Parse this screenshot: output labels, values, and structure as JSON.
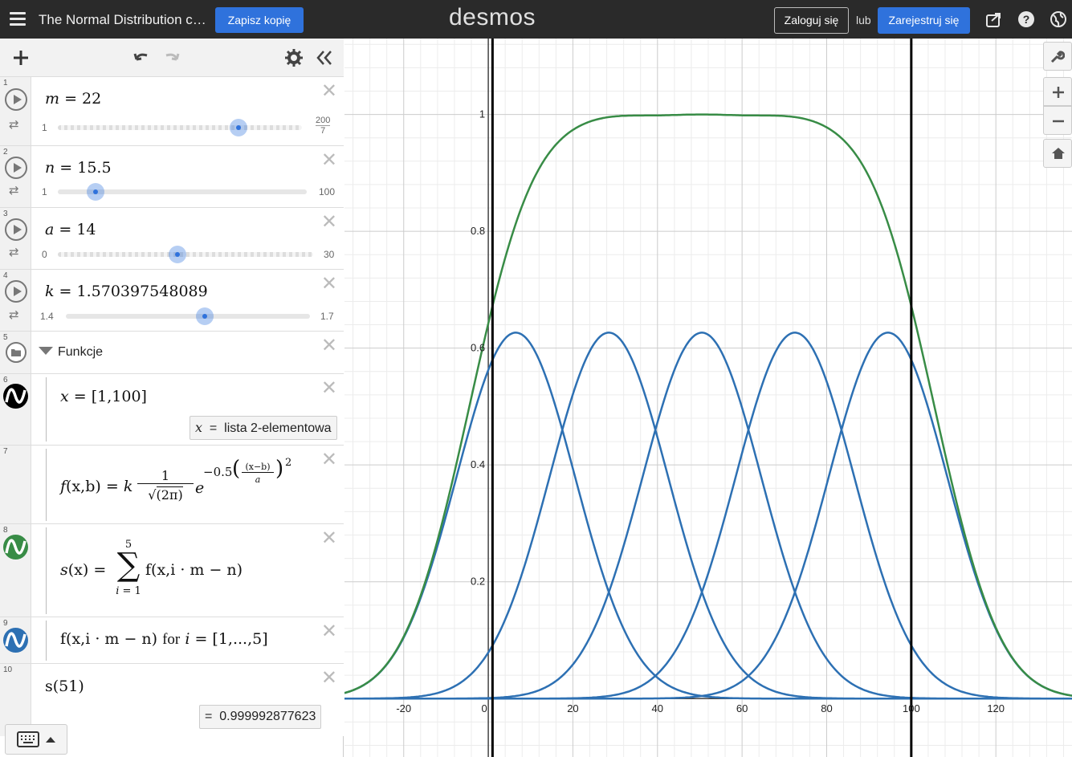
{
  "header": {
    "menu_icon": "hamburger-menu-icon",
    "title": "The Normal Distribution cu...",
    "save_copy": "Zapisz kopię",
    "logo": "desmos",
    "login": "Zaloguj się",
    "or": "lub",
    "register": "Zarejestruj się",
    "icons": [
      "share-icon",
      "help-icon",
      "language-globe-icon"
    ]
  },
  "toolbar": {
    "icons": [
      "add-icon",
      "undo-icon",
      "redo-icon",
      "settings-gear-icon",
      "collapse-panel-icon"
    ]
  },
  "expressions": [
    {
      "index": "1",
      "var": "m",
      "value": "22",
      "min": "1",
      "max_num": "200",
      "max_den": "7",
      "knob_fraction": 0.74
    },
    {
      "index": "2",
      "var": "n",
      "value": "15.5",
      "min": "1",
      "max": "100",
      "knob_fraction": 0.15
    },
    {
      "index": "3",
      "var": "a",
      "value": "14",
      "min": "0",
      "max": "30",
      "knob_fraction": 0.47
    },
    {
      "index": "4",
      "var": "k",
      "value": "1.570397548089",
      "min": "1.4",
      "max": "1.7",
      "knob_fraction": 0.57
    },
    {
      "index": "5",
      "folder": "Funkcje"
    },
    {
      "index": "6",
      "result_var": "x",
      "result_eq": "=",
      "result": "lista 2-elementowa"
    },
    {
      "index": "7"
    },
    {
      "index": "8"
    },
    {
      "index": "9"
    },
    {
      "index": "10",
      "result_eq": "=",
      "result": "0.999992877623"
    }
  ],
  "math": {
    "e6_lhs": "x",
    "e6_eq": "=",
    "e6_rhs": "[1,100]",
    "e7_f": "f",
    "e7_args": "(x,b)",
    "e7_eq": "=",
    "e7_k": "k",
    "e7_num": "1",
    "e7_den": "(2π)",
    "e7_e": "e",
    "e7_exp_a": "−0.5",
    "e7_exp_num": "(x−b)",
    "e7_exp_den": "a",
    "e7_exp_pow": "2",
    "e8_s": "s",
    "e8_args": "(x)",
    "e8_eq": "=",
    "e8_top": "5",
    "e8_bot": "i = 1",
    "e8_body": "f(x,i · m − n)",
    "e9_body": "f(x,i · m − n)",
    "e9_for": "for",
    "e9_i": "i",
    "e9_eq": "=",
    "e9_list": "[1,...,5]",
    "e10_body": "s(51)"
  },
  "side_controls": [
    "wrench-icon",
    "zoom-in-icon",
    "zoom-out-icon",
    "home-icon"
  ],
  "keyboard": {
    "icon": "keyboard-icon",
    "toggle": "caret-up-icon"
  },
  "colors": {
    "blue": "#2d70b3",
    "green": "#388c46",
    "black": "#000000"
  },
  "chart_data": {
    "type": "line",
    "x_ticks": [
      "-20",
      "0",
      "20",
      "40",
      "60",
      "80",
      "100",
      "120"
    ],
    "y_ticks": [
      "0.2",
      "0.4",
      "0.6",
      "0.8",
      "1"
    ],
    "xlim": [
      -34,
      138
    ],
    "ylim": [
      -0.1,
      1.13
    ],
    "grid": true,
    "params": {
      "m": 22,
      "n": 15.5,
      "a": 14,
      "k": 1.570397548089
    },
    "vertical_lines": [
      1,
      100
    ],
    "series": [
      {
        "formula": "f(x, i·m − n), i = 1..5",
        "peaks_x": [
          6.5,
          28.5,
          50.5,
          72.5,
          94.5
        ],
        "peak_y": 0.6265,
        "color": "#2d70b3"
      },
      {
        "formula": "s(x) = Σ f(x, i·m − n)",
        "color": "#388c46"
      }
    ]
  }
}
